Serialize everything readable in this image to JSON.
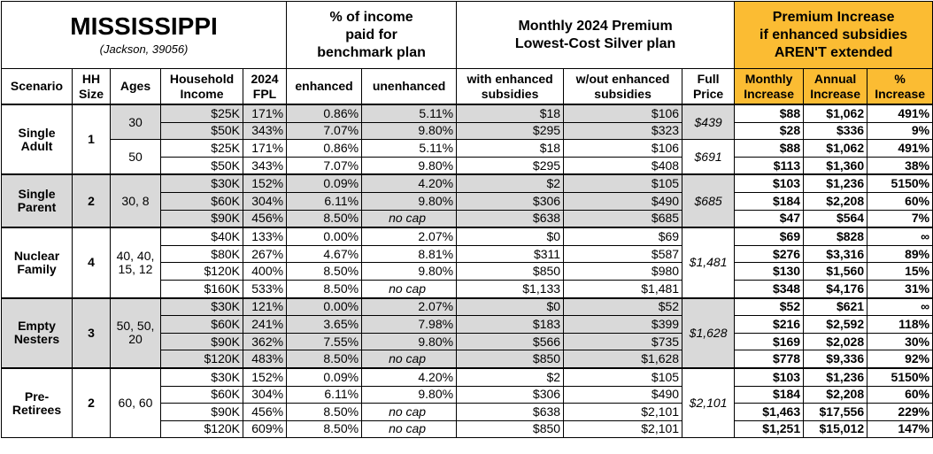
{
  "header": {
    "title": "MISSISSIPPI",
    "subtitle": "(Jackson, 39056)",
    "groups": [
      "% of income\npaid for\nbenchmark plan",
      "Monthly 2024 Premium\nLowest-Cost Silver plan",
      "Premium Increase\nif enhanced subsidies\nAREN'T extended"
    ]
  },
  "columns": [
    "Scenario",
    "HH\nSize",
    "Ages",
    "Household\nIncome",
    "2024\nFPL",
    "enhanced",
    "unenhanced",
    "with enhanced\nsubsidies",
    "w/out enhanced\nsubsidies",
    "Full\nPrice",
    "Monthly\nIncrease",
    "Annual\nIncrease",
    "%\nIncrease"
  ],
  "scenarios": [
    {
      "name": "Single\nAdult",
      "size": "1",
      "blocks": [
        {
          "ages": "30",
          "full_price": "$439",
          "rows": [
            [
              "$25K",
              "171%",
              "0.86%",
              "5.11%",
              "$18",
              "$106",
              "$88",
              "$1,062",
              "491%"
            ],
            [
              "$50K",
              "343%",
              "7.07%",
              "9.80%",
              "$295",
              "$323",
              "$28",
              "$336",
              "9%"
            ]
          ]
        },
        {
          "ages": "50",
          "full_price": "$691",
          "rows": [
            [
              "$25K",
              "171%",
              "0.86%",
              "5.11%",
              "$18",
              "$106",
              "$88",
              "$1,062",
              "491%"
            ],
            [
              "$50K",
              "343%",
              "7.07%",
              "9.80%",
              "$295",
              "$408",
              "$113",
              "$1,360",
              "38%"
            ]
          ]
        }
      ]
    },
    {
      "name": "Single\nParent",
      "size": "2",
      "blocks": [
        {
          "ages": "30, 8",
          "full_price": "$685",
          "rows": [
            [
              "$30K",
              "152%",
              "0.09%",
              "4.20%",
              "$2",
              "$105",
              "$103",
              "$1,236",
              "5150%"
            ],
            [
              "$60K",
              "304%",
              "6.11%",
              "9.80%",
              "$306",
              "$490",
              "$184",
              "$2,208",
              "60%"
            ],
            [
              "$90K",
              "456%",
              "8.50%",
              "no cap",
              "$638",
              "$685",
              "$47",
              "$564",
              "7%"
            ]
          ]
        }
      ]
    },
    {
      "name": "Nuclear\nFamily",
      "size": "4",
      "blocks": [
        {
          "ages": "40, 40,\n15, 12",
          "full_price": "$1,481",
          "rows": [
            [
              "$40K",
              "133%",
              "0.00%",
              "2.07%",
              "$0",
              "$69",
              "$69",
              "$828",
              "∞"
            ],
            [
              "$80K",
              "267%",
              "4.67%",
              "8.81%",
              "$311",
              "$587",
              "$276",
              "$3,316",
              "89%"
            ],
            [
              "$120K",
              "400%",
              "8.50%",
              "9.80%",
              "$850",
              "$980",
              "$130",
              "$1,560",
              "15%"
            ],
            [
              "$160K",
              "533%",
              "8.50%",
              "no cap",
              "$1,133",
              "$1,481",
              "$348",
              "$4,176",
              "31%"
            ]
          ]
        }
      ]
    },
    {
      "name": "Empty\nNesters",
      "size": "3",
      "blocks": [
        {
          "ages": "50, 50,\n20",
          "full_price": "$1,628",
          "rows": [
            [
              "$30K",
              "121%",
              "0.00%",
              "2.07%",
              "$0",
              "$52",
              "$52",
              "$621",
              "∞"
            ],
            [
              "$60K",
              "241%",
              "3.65%",
              "7.98%",
              "$183",
              "$399",
              "$216",
              "$2,592",
              "118%"
            ],
            [
              "$90K",
              "362%",
              "7.55%",
              "9.80%",
              "$566",
              "$735",
              "$169",
              "$2,028",
              "30%"
            ],
            [
              "$120K",
              "483%",
              "8.50%",
              "no cap",
              "$850",
              "$1,628",
              "$778",
              "$9,336",
              "92%"
            ]
          ]
        }
      ]
    },
    {
      "name": "Pre-\nRetirees",
      "size": "2",
      "blocks": [
        {
          "ages": "60, 60",
          "full_price": "$2,101",
          "rows": [
            [
              "$30K",
              "152%",
              "0.09%",
              "4.20%",
              "$2",
              "$105",
              "$103",
              "$1,236",
              "5150%"
            ],
            [
              "$60K",
              "304%",
              "6.11%",
              "9.80%",
              "$306",
              "$490",
              "$184",
              "$2,208",
              "60%"
            ],
            [
              "$90K",
              "456%",
              "8.50%",
              "no cap",
              "$638",
              "$2,101",
              "$1,463",
              "$17,556",
              "229%"
            ],
            [
              "$120K",
              "609%",
              "8.50%",
              "no cap",
              "$850",
              "$2,101",
              "$1,251",
              "$15,012",
              "147%"
            ]
          ]
        }
      ]
    }
  ]
}
